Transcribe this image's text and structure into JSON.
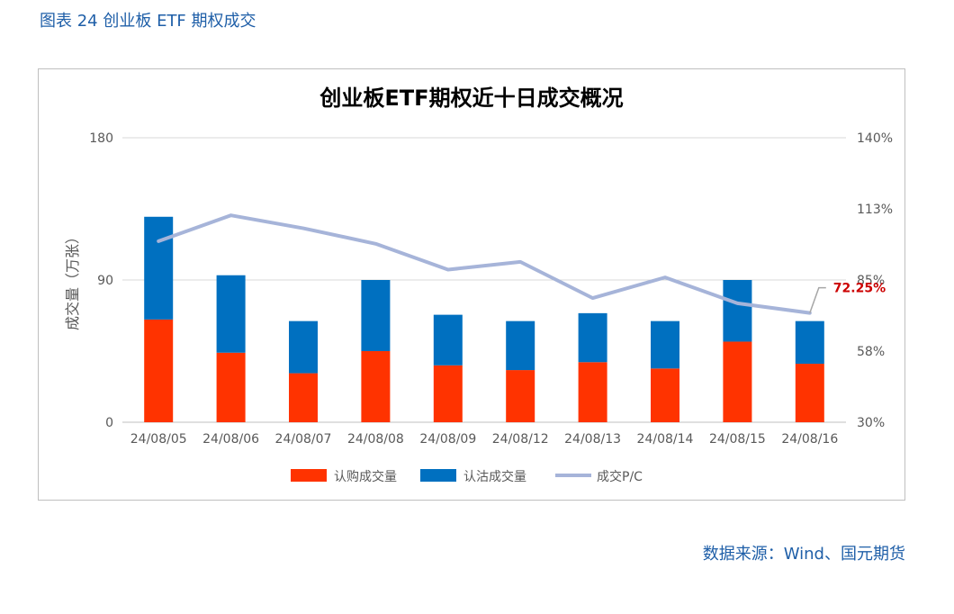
{
  "figure_caption": "图表 24 创业板 ETF 期权成交",
  "source_note": "数据来源：Wind、国元期货",
  "chart_data": {
    "type": "bar",
    "title": "创业板ETF期权近十日成交概况",
    "ylabel": "成交量（万张）",
    "ylim": [
      0,
      180
    ],
    "y_ticks": [
      "0",
      "90",
      "180"
    ],
    "y2lim": [
      0.3,
      1.4
    ],
    "y2_ticks": [
      "30%",
      "58%",
      "85%",
      "113%",
      "140%"
    ],
    "categories": [
      "24/08/05",
      "24/08/06",
      "24/08/07",
      "24/08/08",
      "24/08/09",
      "24/08/12",
      "24/08/13",
      "24/08/14",
      "24/08/15",
      "24/08/16"
    ],
    "series": [
      {
        "name": "认购成交量",
        "type": "bar",
        "stack": "vol",
        "color": "#ff3300",
        "values": [
          65,
          44,
          31,
          45,
          36,
          33,
          38,
          34,
          51,
          37
        ]
      },
      {
        "name": "认沽成交量",
        "type": "bar",
        "stack": "vol",
        "color": "#0070c0",
        "values": [
          65,
          49,
          33,
          45,
          32,
          31,
          31,
          30,
          39,
          27
        ]
      },
      {
        "name": "成交P/C",
        "type": "line",
        "axis": "right",
        "color": "#a6b4d9",
        "values": [
          1.0,
          1.1,
          1.05,
          0.99,
          0.89,
          0.92,
          0.78,
          0.86,
          0.76,
          0.7225
        ]
      }
    ],
    "annotation": {
      "text": "72.25%",
      "color": "#cc0000"
    },
    "legend_position": "bottom",
    "grid": true
  }
}
